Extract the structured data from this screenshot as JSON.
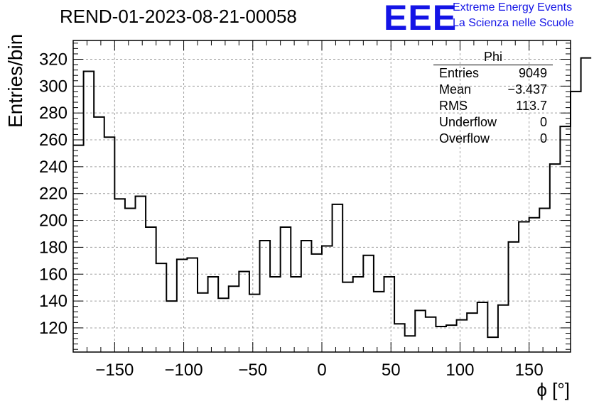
{
  "chart_data": {
    "type": "histogram",
    "title": "REND-01-2023-08-21-00058",
    "xlabel": "ϕ [°]",
    "ylabel": "Entries/bin",
    "xlim": [
      -180,
      180
    ],
    "ylim": [
      102,
      334
    ],
    "xticks": [
      -150,
      -100,
      -50,
      0,
      50,
      100,
      150
    ],
    "yticks": [
      120,
      140,
      160,
      180,
      200,
      220,
      240,
      260,
      280,
      300,
      320
    ],
    "grid": true,
    "bin_width": 7.5,
    "bin_edges_start": -180,
    "values": [
      256,
      311,
      277,
      262,
      216,
      209,
      218,
      195,
      168,
      140,
      171,
      172,
      146,
      158,
      142,
      151,
      162,
      145,
      185,
      158,
      195,
      158,
      185,
      175,
      181,
      212,
      154,
      158,
      174,
      147,
      158,
      123,
      114,
      133,
      128,
      121,
      122,
      126,
      131,
      139,
      113,
      137,
      184,
      199,
      202,
      209,
      242,
      270,
      296,
      321
    ]
  },
  "stats_box": {
    "title": "Phi",
    "rows": [
      {
        "label": "Entries",
        "value": "9049"
      },
      {
        "label": "Mean",
        "value": "−3.437"
      },
      {
        "label": "RMS",
        "value": "113.7"
      },
      {
        "label": "Underflow",
        "value": "0"
      },
      {
        "label": "Overflow",
        "value": "0"
      }
    ]
  },
  "logo": {
    "mark": "EEE",
    "line1": "Extreme Energy Events",
    "line2": "La Scienza nelle Scuole",
    "color": "#1414e6"
  }
}
